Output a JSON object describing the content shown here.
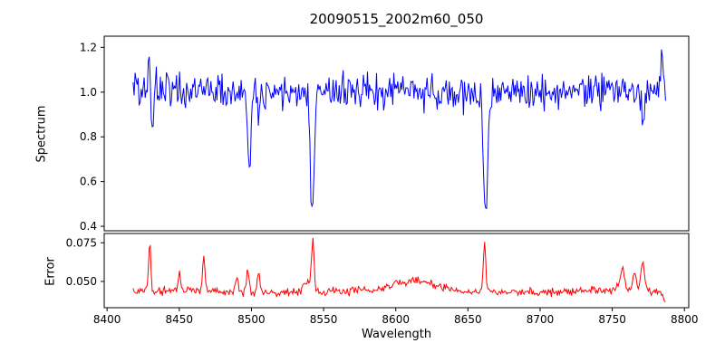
{
  "chart_data": {
    "type": "line",
    "title": "20090515_2002m60_050",
    "xlabel": "Wavelength",
    "xlim": [
      8398,
      8803
    ],
    "xticks": [
      8400,
      8450,
      8500,
      8550,
      8600,
      8650,
      8700,
      8750,
      8800
    ],
    "legend": "none",
    "grid": false,
    "panels": [
      {
        "name": "spectrum",
        "ylabel": "Spectrum",
        "color": "#0000ff",
        "ylim": [
          0.38,
          1.25
        ],
        "yticks": [
          0.4,
          0.6,
          0.8,
          1.0,
          1.2
        ],
        "ytick_labels": [
          "0.4",
          "0.6",
          "0.8",
          "1.0",
          "1.2"
        ],
        "x_start": 8418,
        "x_end": 8787,
        "x_step": 0.7,
        "baseline": 1.0,
        "wiggle": 0.008,
        "noise_sigma": 0.038,
        "noise_seed": 12345,
        "features": [
          {
            "c": 8429.0,
            "a": 0.17,
            "w": 0.9
          },
          {
            "c": 8431.5,
            "a": -0.22,
            "w": 1.0
          },
          {
            "c": 8498.3,
            "a": -0.36,
            "w": 1.6
          },
          {
            "c": 8504.8,
            "a": -0.12,
            "w": 1.3
          },
          {
            "c": 8542.1,
            "a": -0.55,
            "w": 1.8
          },
          {
            "c": 8662.1,
            "a": -0.54,
            "w": 1.9
          },
          {
            "c": 8771.5,
            "a": -0.13,
            "w": 2.0
          },
          {
            "c": 8784.5,
            "a": 0.2,
            "w": 1.0
          }
        ]
      },
      {
        "name": "error",
        "ylabel": "Error",
        "color": "#ff0000",
        "ylim": [
          0.033,
          0.081
        ],
        "yticks": [
          0.05,
          0.075
        ],
        "ytick_labels": [
          "0.050",
          "0.075"
        ],
        "x_start": 8418,
        "x_end": 8787,
        "x_step": 0.7,
        "baseline": 0.0435,
        "wiggle": 0.0008,
        "noise_sigma": 0.0013,
        "noise_seed": 999,
        "features": [
          {
            "c": 8429.5,
            "a": 0.031,
            "w": 1.1
          },
          {
            "c": 8450.0,
            "a": 0.012,
            "w": 1.0
          },
          {
            "c": 8467.0,
            "a": 0.021,
            "w": 1.2
          },
          {
            "c": 8490.0,
            "a": 0.009,
            "w": 1.2
          },
          {
            "c": 8497.5,
            "a": 0.013,
            "w": 1.3
          },
          {
            "c": 8505.0,
            "a": 0.012,
            "w": 1.3
          },
          {
            "c": 8538.0,
            "a": 0.007,
            "w": 3.0
          },
          {
            "c": 8542.5,
            "a": 0.033,
            "w": 1.3
          },
          {
            "c": 8615.0,
            "a": 0.006,
            "w": 22.0
          },
          {
            "c": 8661.5,
            "a": 0.03,
            "w": 1.3
          },
          {
            "c": 8757.0,
            "a": 0.014,
            "w": 2.2
          },
          {
            "c": 8765.5,
            "a": 0.012,
            "w": 1.5
          },
          {
            "c": 8771.0,
            "a": 0.02,
            "w": 1.6
          },
          {
            "c": 8786.5,
            "a": -0.007,
            "w": 1.5
          }
        ]
      }
    ]
  }
}
